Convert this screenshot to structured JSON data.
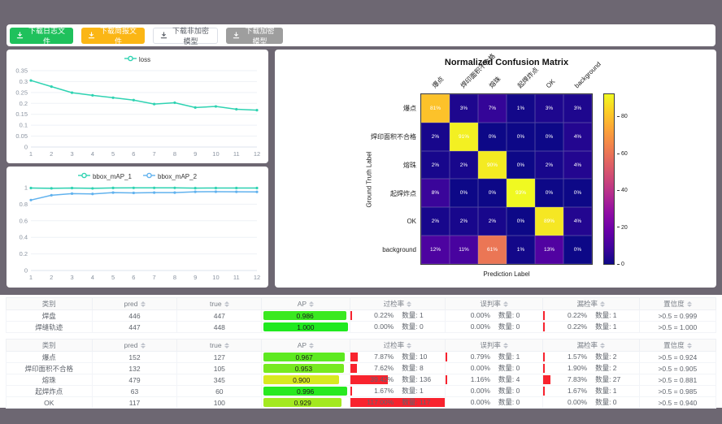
{
  "colors": {
    "background": "#6d6772",
    "teal": "#2fd3b2",
    "blue": "#61b2ee",
    "red_bar": "#f8232e",
    "green_button": "#1fc15c",
    "orange_button": "#fbb615",
    "gray_button": "#9e9e9e"
  },
  "toolbar": {
    "buttons": [
      {
        "label": "下载日志文件",
        "style": "green"
      },
      {
        "label": "下载简报文件",
        "style": "orange"
      },
      {
        "label": "下载非加密模型",
        "style": "white"
      },
      {
        "label": "下载加密模型",
        "style": "gray"
      }
    ]
  },
  "chart_data": [
    {
      "type": "line",
      "title": "",
      "legend": [
        "loss"
      ],
      "x": [
        1,
        2,
        3,
        4,
        5,
        6,
        7,
        8,
        9,
        10,
        11,
        12
      ],
      "series": [
        {
          "name": "loss",
          "color": "#2fd3b2",
          "values": [
            0.305,
            0.277,
            0.249,
            0.237,
            0.226,
            0.215,
            0.197,
            0.203,
            0.181,
            0.186,
            0.173,
            0.169
          ]
        }
      ],
      "ylim": [
        0,
        0.35
      ],
      "yticks": [
        0,
        0.05,
        0.1,
        0.15,
        0.2,
        0.25,
        0.3,
        0.35
      ],
      "grid": true,
      "legend_position": "top"
    },
    {
      "type": "line",
      "title": "",
      "legend": [
        "bbox_mAP_1",
        "bbox_mAP_2"
      ],
      "x": [
        1,
        2,
        3,
        4,
        5,
        6,
        7,
        8,
        9,
        10,
        11,
        12
      ],
      "series": [
        {
          "name": "bbox_mAP_1",
          "color": "#2fd3b2",
          "values": [
            0.995,
            0.992,
            0.995,
            0.991,
            0.996,
            0.997,
            0.997,
            0.997,
            0.994,
            0.995,
            0.995,
            0.995
          ]
        },
        {
          "name": "bbox_mAP_2",
          "color": "#61b2ee",
          "values": [
            0.85,
            0.908,
            0.928,
            0.924,
            0.94,
            0.936,
            0.94,
            0.94,
            0.95,
            0.951,
            0.95,
            0.949
          ]
        }
      ],
      "ylim": [
        0,
        1
      ],
      "yticks": [
        0,
        0.2,
        0.4,
        0.6,
        0.8,
        1
      ],
      "grid": true,
      "legend_position": "top"
    },
    {
      "type": "heatmap",
      "title": "Normalized Confusion Matrix",
      "xlabel": "Prediction Label",
      "ylabel": "Ground Truth Label",
      "classes": [
        "爆点",
        "焊印面积不合格",
        "熔珠",
        "起焊炸点",
        "OK",
        "background"
      ],
      "matrix_percent": [
        [
          81,
          3,
          7,
          1,
          3,
          3
        ],
        [
          2,
          91,
          0,
          0,
          0,
          4
        ],
        [
          2,
          2,
          90,
          0,
          2,
          4
        ],
        [
          8,
          0,
          0,
          93,
          0,
          0
        ],
        [
          2,
          2,
          2,
          0,
          89,
          4
        ],
        [
          12,
          11,
          61,
          1,
          13,
          0
        ]
      ],
      "vmax": 93,
      "colorbar_ticks": [
        0,
        20,
        40,
        60,
        80
      ],
      "colormap": "plasma"
    }
  ],
  "tables": {
    "qty_label": "数量:",
    "headers": [
      {
        "label": "类别",
        "sortable": false
      },
      {
        "label": "pred",
        "sortable": true
      },
      {
        "label": "true",
        "sortable": true
      },
      {
        "label": "AP",
        "sortable": true
      },
      {
        "label": "过检率",
        "sortable": true
      },
      {
        "label": "误判率",
        "sortable": true
      },
      {
        "label": "漏检率",
        "sortable": true
      },
      {
        "label": "置信度",
        "sortable": true
      }
    ],
    "groups": [
      {
        "rows": [
          {
            "name": "焊盘",
            "pred": "446",
            "true": "447",
            "ap": "0.986",
            "metrics": [
              {
                "pct": "0.22%",
                "qty": "1",
                "bar": 0.22
              },
              {
                "pct": "0.00%",
                "qty": "0",
                "bar": 0
              },
              {
                "pct": "0.22%",
                "qty": "1",
                "bar": 0.22
              }
            ],
            "conf": ">0.5 = 0.999"
          },
          {
            "name": "焊缝轨迹",
            "pred": "447",
            "true": "448",
            "ap": "1.000",
            "metrics": [
              {
                "pct": "0.00%",
                "qty": "0",
                "bar": 0
              },
              {
                "pct": "0.00%",
                "qty": "0",
                "bar": 0
              },
              {
                "pct": "0.22%",
                "qty": "1",
                "bar": 0.22
              }
            ],
            "conf": ">0.5 = 1.000"
          }
        ]
      },
      {
        "rows": [
          {
            "name": "爆点",
            "pred": "152",
            "true": "127",
            "ap": "0.967",
            "metrics": [
              {
                "pct": "7.87%",
                "qty": "10",
                "bar": 7.87
              },
              {
                "pct": "0.79%",
                "qty": "1",
                "bar": 0.79
              },
              {
                "pct": "1.57%",
                "qty": "2",
                "bar": 1.57
              }
            ],
            "conf": ">0.5 = 0.924"
          },
          {
            "name": "焊印面积不合格",
            "pred": "132",
            "true": "105",
            "ap": "0.953",
            "metrics": [
              {
                "pct": "7.62%",
                "qty": "8",
                "bar": 7.62
              },
              {
                "pct": "0.00%",
                "qty": "0",
                "bar": 0
              },
              {
                "pct": "1.90%",
                "qty": "2",
                "bar": 1.9
              }
            ],
            "conf": ">0.5 = 0.905"
          },
          {
            "name": "熔珠",
            "pred": "479",
            "true": "345",
            "ap": "0.900",
            "metrics": [
              {
                "pct": "39.42%",
                "qty": "136",
                "bar": 39.42
              },
              {
                "pct": "1.16%",
                "qty": "4",
                "bar": 1.16
              },
              {
                "pct": "7.83%",
                "qty": "27",
                "bar": 7.83
              }
            ],
            "conf": ">0.5 = 0.881"
          },
          {
            "name": "起焊炸点",
            "pred": "63",
            "true": "60",
            "ap": "0.996",
            "metrics": [
              {
                "pct": "1.67%",
                "qty": "1",
                "bar": 1.67
              },
              {
                "pct": "0.00%",
                "qty": "0",
                "bar": 0
              },
              {
                "pct": "1.67%",
                "qty": "1",
                "bar": 1.67
              }
            ],
            "conf": ">0.5 = 0.985"
          },
          {
            "name": "OK",
            "pred": "117",
            "true": "100",
            "ap": "0.929",
            "metrics": [
              {
                "pct": "117.00%",
                "qty": "117",
                "bar": 117
              },
              {
                "pct": "0.00%",
                "qty": "0",
                "bar": 0
              },
              {
                "pct": "0.00%",
                "qty": "0",
                "bar": 0
              }
            ],
            "conf": ">0.5 = 0.940"
          }
        ]
      }
    ]
  }
}
